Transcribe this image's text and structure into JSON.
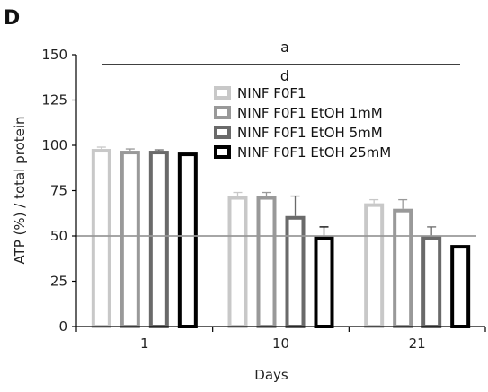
{
  "panel_label": "D",
  "chart_data": {
    "type": "bar",
    "categories": [
      "1",
      "10",
      "21"
    ],
    "xlabel": "Days",
    "ylabel": "ATP (%) / total protein",
    "ylim": [
      0,
      150
    ],
    "yticks": [
      0,
      25,
      50,
      75,
      100,
      125,
      150
    ],
    "reference_line": 50,
    "legend_position": "upper-center",
    "series": [
      {
        "name": "NINF F0F1",
        "values": [
          98,
          72,
          68
        ],
        "errors": [
          1,
          2,
          2
        ],
        "fill": "#ffffff",
        "stroke": "#c8c8c8"
      },
      {
        "name": "NINF F0F1 EtOH 1mM",
        "values": [
          97,
          72,
          65
        ],
        "errors": [
          1,
          2,
          5
        ],
        "fill": "#ffffff",
        "stroke": "#999999"
      },
      {
        "name": "NINF F0F1 EtOH 5mM",
        "values": [
          97,
          61,
          50
        ],
        "errors": [
          0.5,
          11,
          5
        ],
        "fill": "#ffffff",
        "stroke": "#6a6a6a"
      },
      {
        "name": "NINF F0F1 EtOH 25mM",
        "values": [
          96,
          50,
          45
        ],
        "errors": [
          0,
          5,
          0
        ],
        "fill": "#ffffff",
        "stroke": "#000000"
      }
    ],
    "annotations": {
      "top_label": "a",
      "bottom_label": "d"
    }
  }
}
